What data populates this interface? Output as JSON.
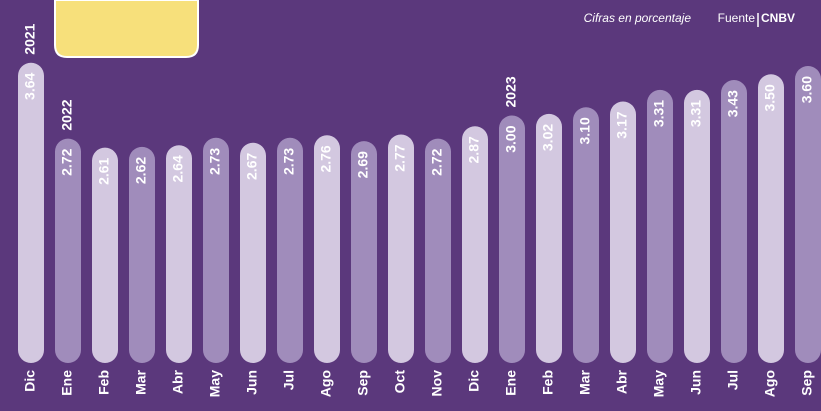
{
  "chart_data": {
    "type": "bar",
    "note": "Cifras en porcentaje",
    "source": {
      "label": "Fuente",
      "name": "CNBV"
    },
    "categories": [
      "Dic",
      "Ene",
      "Feb",
      "Mar",
      "Abr",
      "May",
      "Jun",
      "Jul",
      "Ago",
      "Sep",
      "Oct",
      "Nov",
      "Dic",
      "Ene",
      "Feb",
      "Mar",
      "Abr",
      "May",
      "Jun",
      "Jul",
      "Ago",
      "Sep"
    ],
    "values": [
      3.64,
      2.72,
      2.61,
      2.62,
      2.64,
      2.73,
      2.67,
      2.73,
      2.76,
      2.69,
      2.77,
      2.72,
      2.87,
      3.0,
      3.02,
      3.1,
      3.17,
      3.31,
      3.31,
      3.43,
      3.5,
      3.6
    ],
    "value_labels": [
      "3.64",
      "2.72",
      "2.61",
      "2.62",
      "2.64",
      "2.73",
      "2.67",
      "2.73",
      "2.76",
      "2.69",
      "2.77",
      "2.72",
      "2.87",
      "3.00",
      "3.02",
      "3.10",
      "3.17",
      "3.31",
      "3.31",
      "3.43",
      "3.50",
      "3.60"
    ],
    "colors": [
      "#d3c8e0",
      "#a08cbb"
    ],
    "years": [
      {
        "index": 0,
        "label": "2021"
      },
      {
        "index": 1,
        "label": "2022"
      },
      {
        "index": 13,
        "label": "2023"
      }
    ],
    "ylim": [
      0,
      4.4
    ]
  }
}
